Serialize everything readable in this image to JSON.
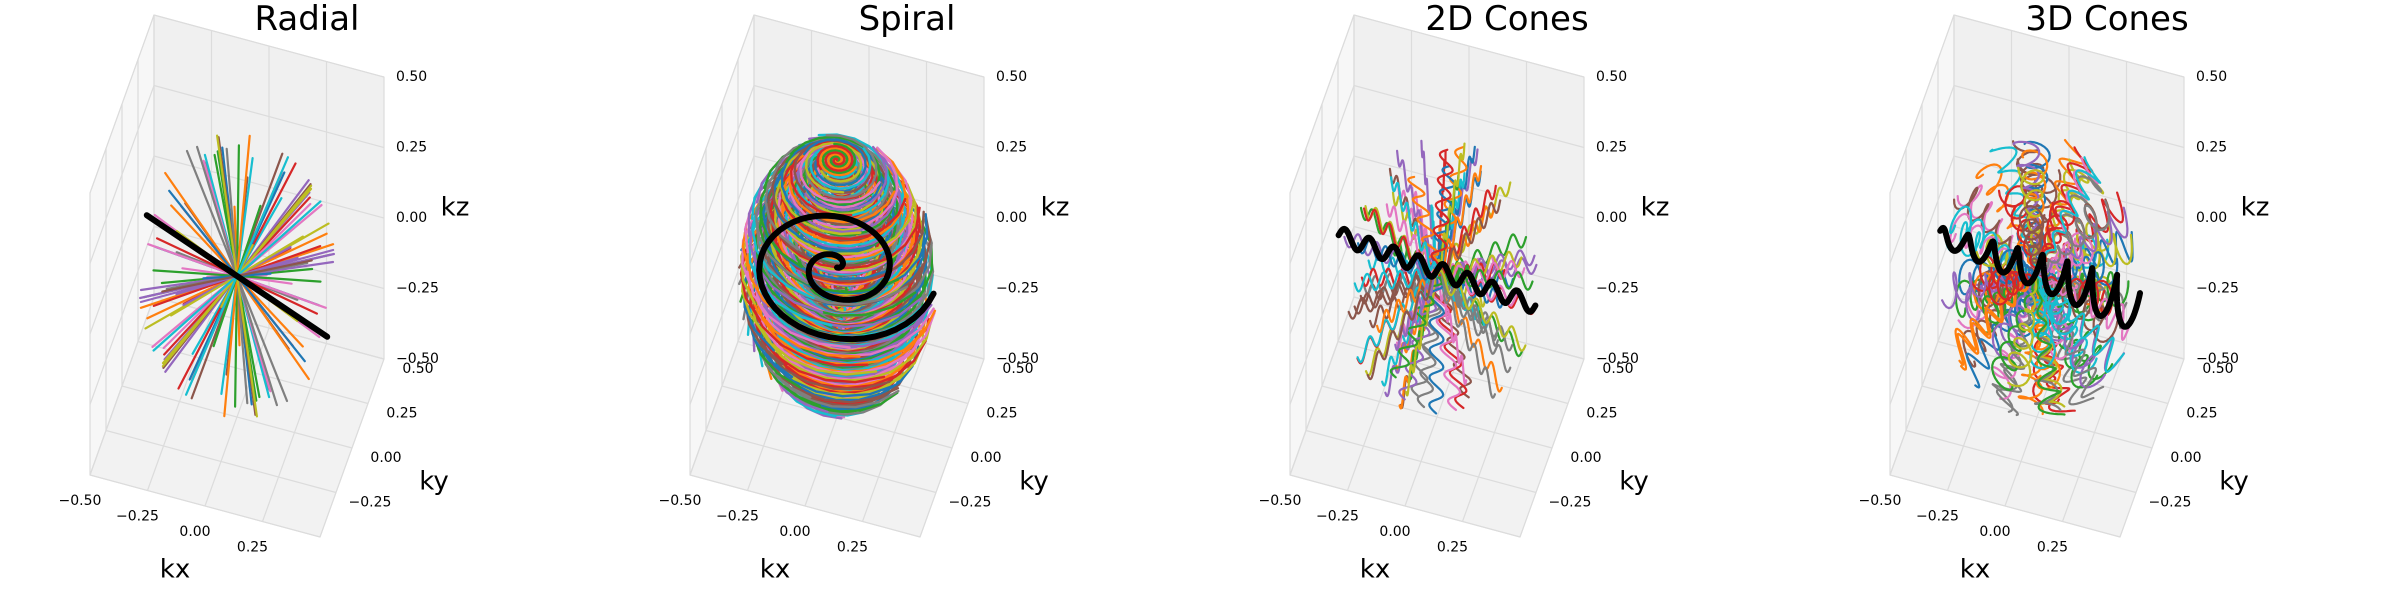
{
  "chart_data": [
    {
      "type": "line",
      "title": "Radial",
      "xlabel": "kx",
      "ylabel": "ky",
      "zlabel": "kz",
      "xlim": [
        -0.5,
        0.5
      ],
      "ylim": [
        -0.5,
        0.5
      ],
      "zlim": [
        -0.5,
        0.5
      ],
      "xticks": [
        "−0.50",
        "−0.25",
        "0.00",
        "0.25"
      ],
      "yticks": [
        "−0.25",
        "0.00",
        "0.25",
        "0.50"
      ],
      "zticks": [
        "−0.50",
        "−0.25",
        "0.00",
        "0.25",
        "0.50"
      ],
      "grid": true,
      "trajectory": "radial",
      "highlight_color": "#000000"
    },
    {
      "type": "line",
      "title": "Spiral",
      "xlabel": "kx",
      "ylabel": "ky",
      "zlabel": "kz",
      "xlim": [
        -0.5,
        0.5
      ],
      "ylim": [
        -0.5,
        0.5
      ],
      "zlim": [
        -0.5,
        0.5
      ],
      "xticks": [
        "−0.50",
        "−0.25",
        "0.00",
        "0.25"
      ],
      "yticks": [
        "−0.25",
        "0.00",
        "0.25",
        "0.50"
      ],
      "zticks": [
        "−0.50",
        "−0.25",
        "0.00",
        "0.25",
        "0.50"
      ],
      "grid": true,
      "trajectory": "spiral",
      "highlight_color": "#000000"
    },
    {
      "type": "line",
      "title": "2D Cones",
      "xlabel": "kx",
      "ylabel": "ky",
      "zlabel": "kz",
      "xlim": [
        -0.5,
        0.5
      ],
      "ylim": [
        -0.5,
        0.5
      ],
      "zlim": [
        -0.5,
        0.5
      ],
      "xticks": [
        "−0.50",
        "−0.25",
        "0.00",
        "0.25"
      ],
      "yticks": [
        "−0.25",
        "0.00",
        "0.25",
        "0.50"
      ],
      "zticks": [
        "−0.50",
        "−0.25",
        "0.00",
        "0.25",
        "0.50"
      ],
      "grid": true,
      "trajectory": "cones2d",
      "highlight_color": "#000000"
    },
    {
      "type": "line",
      "title": "3D Cones",
      "xlabel": "kx",
      "ylabel": "ky",
      "zlabel": "kz",
      "xlim": [
        -0.5,
        0.5
      ],
      "ylim": [
        -0.5,
        0.5
      ],
      "zlim": [
        -0.5,
        0.5
      ],
      "xticks": [
        "−0.50",
        "−0.25",
        "0.00",
        "0.25"
      ],
      "yticks": [
        "−0.25",
        "0.00",
        "0.25",
        "0.50"
      ],
      "zticks": [
        "−0.50",
        "−0.25",
        "0.00",
        "0.25",
        "0.50"
      ],
      "grid": true,
      "trajectory": "cones3d",
      "highlight_color": "#000000"
    }
  ],
  "palette": [
    "#1f77b4",
    "#ff7f0e",
    "#2ca02c",
    "#d62728",
    "#9467bd",
    "#8c564b",
    "#e377c2",
    "#7f7f7f",
    "#bcbd22",
    "#17becf"
  ]
}
